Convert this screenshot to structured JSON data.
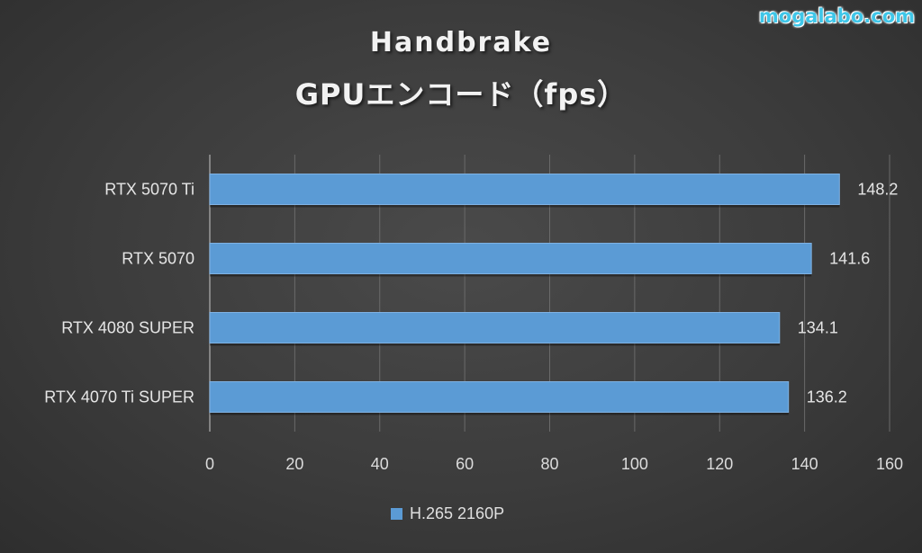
{
  "watermark": "mogalabo.com",
  "chart_data": {
    "type": "bar",
    "orientation": "horizontal",
    "title": [
      "Handbrake",
      "GPUエンコード（fps）"
    ],
    "categories": [
      "RTX 5070 Ti",
      "RTX 5070",
      "RTX 4080 SUPER",
      "RTX 4070 Ti SUPER"
    ],
    "series": [
      {
        "name": "H.265 2160P",
        "values": [
          148.2,
          141.6,
          134.1,
          136.2
        ],
        "color": "#5b9bd5"
      }
    ],
    "value_labels": [
      "148.2",
      "141.6",
      "134.1",
      "136.2"
    ],
    "xlim": [
      0,
      160
    ],
    "xticks": [
      0,
      20,
      40,
      60,
      80,
      100,
      120,
      140,
      160
    ],
    "xtick_labels": [
      "0",
      "20",
      "40",
      "60",
      "80",
      "100",
      "120",
      "140",
      "160"
    ],
    "grid": "vertical",
    "legend_position": "bottom"
  }
}
